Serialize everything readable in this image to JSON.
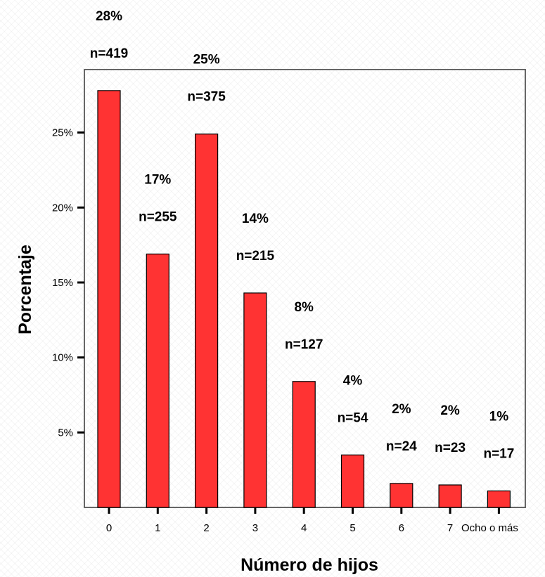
{
  "chart_data": {
    "type": "bar",
    "xlabel": "Número de hijos",
    "ylabel": "Porcentaje",
    "categories": [
      "0",
      "1",
      "2",
      "3",
      "4",
      "5",
      "6",
      "7",
      "Ocho o más"
    ],
    "values": [
      27.8,
      16.9,
      24.9,
      14.3,
      8.4,
      3.5,
      1.6,
      1.5,
      1.1
    ],
    "pct_labels": [
      "28%",
      "17%",
      "25%",
      "14%",
      "8%",
      "4%",
      "2%",
      "2%",
      "1%"
    ],
    "n_labels": [
      "n=419",
      "n=255",
      "n=375",
      "n=215",
      "n=127",
      "n=54",
      "n=24",
      "n=23",
      "n=17"
    ],
    "y_ticks": [
      5,
      10,
      15,
      20,
      25
    ],
    "y_tick_labels": [
      "5%",
      "10%",
      "15%",
      "20%",
      "25%"
    ],
    "ylim": [
      0,
      29.2
    ],
    "grid": false,
    "bar_color": "#ff3333",
    "bar_stroke": "#000000"
  }
}
